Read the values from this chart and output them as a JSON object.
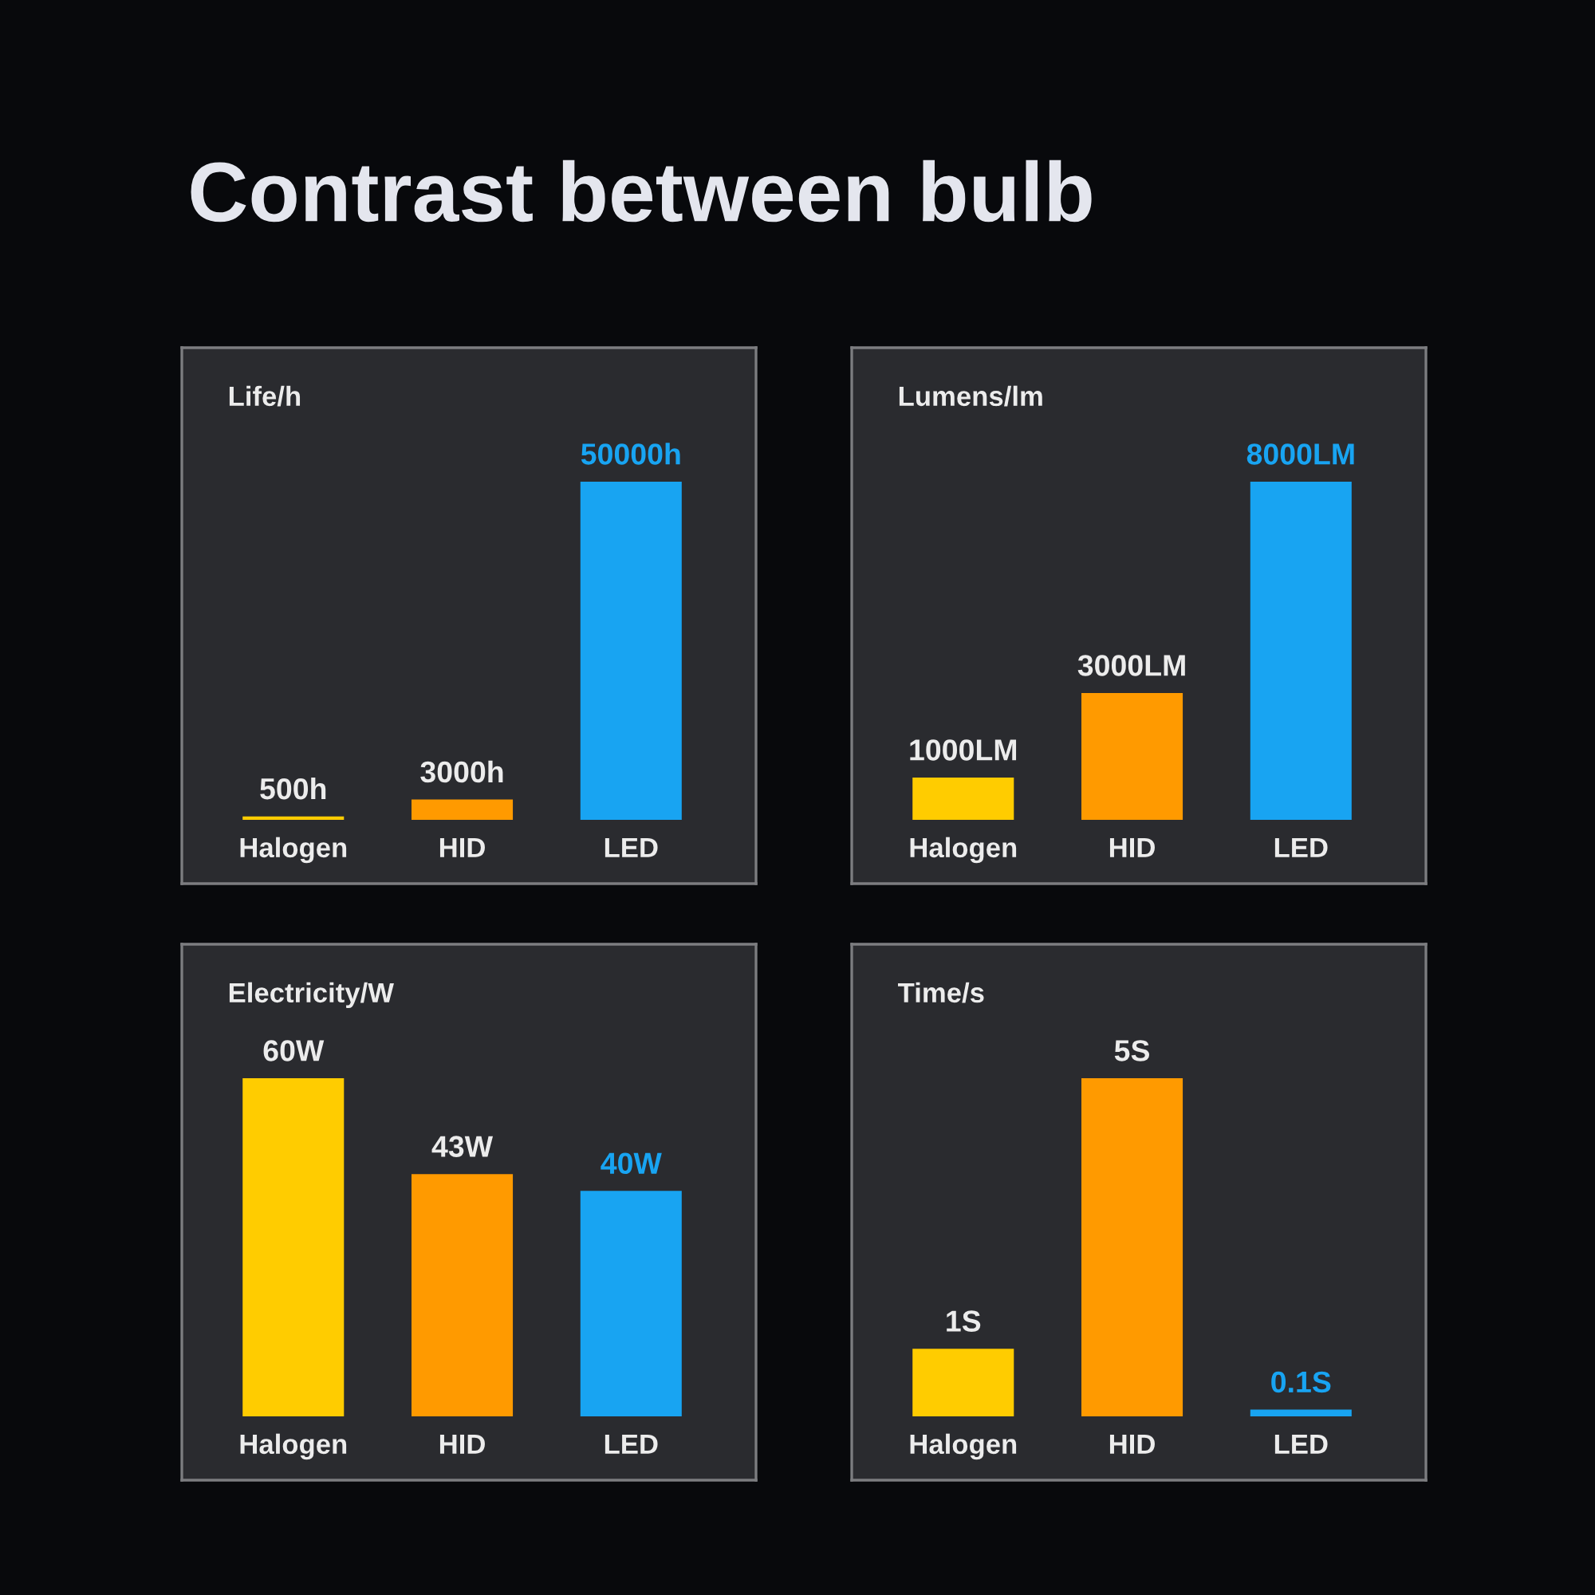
{
  "chart_data": [
    {
      "type": "other",
      "title": "Contrast between bulb"
    },
    {
      "type": "bar",
      "title": "Life/h",
      "categories": [
        "Halogen",
        "HID",
        "LED"
      ],
      "values": [
        500,
        3000,
        50000
      ],
      "colors": [
        "#ffcc00",
        "#ff9a00",
        "#18a4f2"
      ],
      "value_labels": [
        "500h",
        "3000h",
        "50000h"
      ],
      "tick_labels": "x"
    },
    {
      "type": "bar",
      "title": "Lumens/lm",
      "categories": [
        "Halogen",
        "HID",
        "LED"
      ],
      "values": [
        1000,
        3000,
        8000
      ],
      "colors": [
        "#ffcc00",
        "#ff9a00",
        "#18a4f2"
      ],
      "value_labels": [
        "1000LM",
        "3000LM",
        "8000LM"
      ],
      "tick_labels": "x"
    },
    {
      "type": "bar",
      "title": "Electricity/W",
      "categories": [
        "Halogen",
        "HID",
        "LED"
      ],
      "values": [
        60,
        43,
        40
      ],
      "colors": [
        "#ffcc00",
        "#ff9a00",
        "#18a4f2"
      ],
      "value_labels": [
        "60W",
        "43W",
        "40W"
      ],
      "tick_labels": "x"
    },
    {
      "type": "bar",
      "title": "Time/s",
      "categories": [
        "Halogen",
        "HID",
        "LED"
      ],
      "values": [
        1,
        5,
        0.1
      ],
      "colors": [
        "#ffcc00",
        "#ff9a00",
        "#18a4f2"
      ],
      "value_labels": [
        "1S",
        "5S",
        "0.1S"
      ],
      "tick_labels": "x"
    }
  ]
}
